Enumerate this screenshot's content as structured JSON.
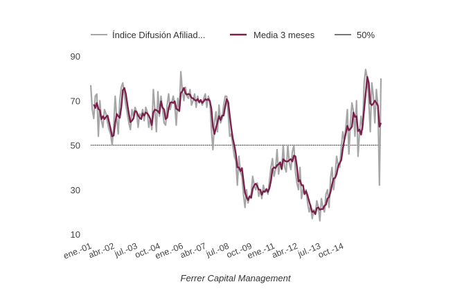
{
  "chart_data": {
    "type": "line",
    "title": "",
    "xlabel": "",
    "ylabel": "",
    "caption": "Ferrer Capital Management",
    "ylim": [
      10,
      90
    ],
    "y_ticks": [
      "90",
      "70",
      "50",
      "30",
      "10"
    ],
    "y_tick_values": [
      90,
      70,
      50,
      30,
      10
    ],
    "x_tick_labels": [
      "ene.-01",
      "abr.-02",
      "jul.-03",
      "oct.-04",
      "ene.-06",
      "abr.-07",
      "jul.-08",
      "oct.-09",
      "ene.-11",
      "abr.-12",
      "jul.-13",
      "oct.-14"
    ],
    "x_tick_month_index": [
      0,
      15,
      30,
      45,
      60,
      75,
      90,
      105,
      120,
      135,
      150,
      165
    ],
    "x_start": "ene.-01",
    "x_frequency": "monthly",
    "grid": false,
    "legend_position": "top",
    "legend": [
      {
        "name": "Índice Difusión Afiliad...",
        "color": "#a6a6a6"
      },
      {
        "name": "Media 3 meses",
        "color": "#7b1f4b"
      },
      {
        "name": "50%",
        "color": "#555555"
      }
    ],
    "reference_line": {
      "name": "50%",
      "value": 50
    },
    "series": [
      {
        "name": "Índice Difusión Afiliad...",
        "color": "#a6a6a6",
        "values": [
          77,
          66,
          62,
          72,
          73,
          54,
          70,
          61,
          58,
          66,
          64,
          60,
          57,
          55,
          50,
          58,
          72,
          62,
          55,
          70,
          76,
          78,
          73,
          68,
          64,
          60,
          57,
          66,
          63,
          67,
          65,
          58,
          64,
          63,
          66,
          61,
          67,
          65,
          58,
          62,
          57,
          75,
          66,
          56,
          74,
          63,
          72,
          66,
          60,
          59,
          68,
          73,
          66,
          69,
          72,
          68,
          59,
          71,
          66,
          83,
          74,
          70,
          76,
          72,
          71,
          75,
          68,
          70,
          73,
          67,
          72,
          69,
          70,
          68,
          71,
          73,
          67,
          72,
          70,
          57,
          48,
          60,
          65,
          56,
          68,
          60,
          62,
          68,
          72,
          72,
          64,
          54,
          55,
          50,
          45,
          43,
          32,
          45,
          38,
          36,
          28,
          22,
          30,
          24,
          27,
          28,
          36,
          32,
          30,
          33,
          27,
          30,
          26,
          32,
          29,
          30,
          28,
          34,
          40,
          44,
          36,
          39,
          48,
          37,
          42,
          39,
          50,
          40,
          38,
          50,
          42,
          39,
          47,
          50,
          38,
          33,
          30,
          40,
          26,
          30,
          28,
          30,
          24,
          20,
          23,
          17,
          21,
          19,
          25,
          22,
          16,
          26,
          22,
          20,
          28,
          30,
          22,
          35,
          40,
          30,
          36,
          45,
          41,
          40,
          49,
          56,
          52,
          58,
          66,
          46,
          60,
          69,
          65,
          54,
          70,
          45,
          56,
          63,
          57,
          78,
          84,
          80,
          70,
          56,
          78,
          72,
          60,
          75,
          68,
          32,
          80
        ]
      },
      {
        "name": "Media 3 meses",
        "color": "#7b1f4b",
        "values": []
      }
    ]
  }
}
